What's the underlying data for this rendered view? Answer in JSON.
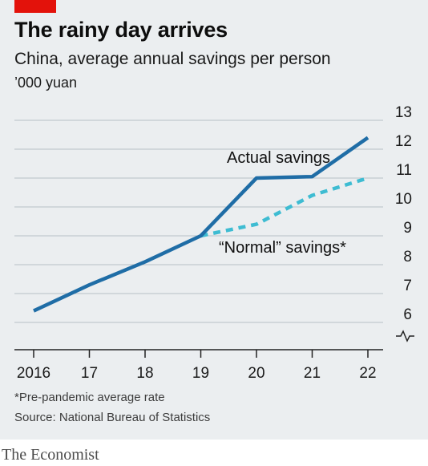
{
  "colors": {
    "accent_red": "#e3120b",
    "actual_line": "#1f6da6",
    "normal_line": "#3ebcd2",
    "grid": "#b7c0c6",
    "axis": "#222222",
    "background": "#ebeef0"
  },
  "footnote": "*Pre-pandemic average rate",
  "source": "Source: National Bureau of Statistics",
  "brand": "The Economist",
  "chart_data": {
    "type": "line",
    "title": "The rainy day arrives",
    "subtitle": "China, average annual savings per person",
    "ylabel": "’000 yuan",
    "xlabel": "",
    "x": [
      2016,
      2017,
      2018,
      2019,
      2020,
      2021,
      2022
    ],
    "x_tick_labels": [
      "2016",
      "17",
      "18",
      "19",
      "20",
      "21",
      "22"
    ],
    "y_ticks": [
      6,
      7,
      8,
      9,
      10,
      11,
      12,
      13
    ],
    "ylim": [
      5,
      13
    ],
    "y_axis_broken": true,
    "y_axis_side": "right",
    "grid": true,
    "series": [
      {
        "name": "Actual savings",
        "style": "solid",
        "color": "#1f6da6",
        "x": [
          2016,
          2017,
          2018,
          2019,
          2020,
          2021,
          2022
        ],
        "values": [
          6.4,
          7.3,
          8.1,
          9.0,
          11.0,
          11.05,
          12.4
        ]
      },
      {
        "name": "“Normal” savings*",
        "style": "dashed",
        "color": "#3ebcd2",
        "x": [
          2019,
          2020,
          2021,
          2022
        ],
        "values": [
          9.0,
          9.4,
          10.4,
          11.0
        ]
      }
    ]
  }
}
